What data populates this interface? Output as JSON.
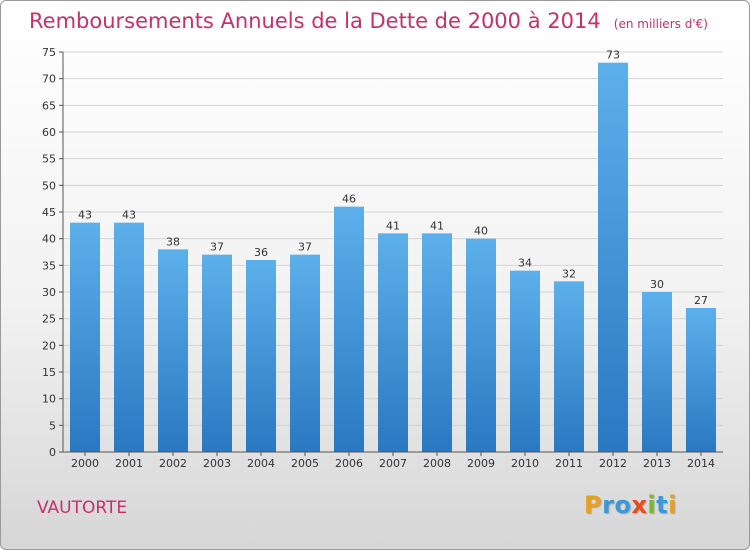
{
  "chart_data": {
    "type": "bar",
    "title": "Remboursements Annuels de la Dette de 2000 à 2014",
    "subtitle": "(en milliers d'€)",
    "categories": [
      "2000",
      "2001",
      "2002",
      "2003",
      "2004",
      "2005",
      "2006",
      "2007",
      "2008",
      "2009",
      "2010",
      "2011",
      "2012",
      "2013",
      "2014"
    ],
    "values": [
      43,
      43,
      38,
      37,
      36,
      37,
      46,
      41,
      41,
      40,
      34,
      32,
      73,
      30,
      27
    ],
    "ylim": [
      0,
      75
    ],
    "yticks": [
      0,
      5,
      10,
      15,
      20,
      25,
      30,
      35,
      40,
      45,
      50,
      55,
      60,
      65,
      70,
      75
    ],
    "grid": true,
    "xlabel": "",
    "ylabel": ""
  },
  "commune": "VAUTORTE",
  "brand": {
    "letters": [
      "P",
      "r",
      "o",
      "x",
      "i",
      "t",
      "i"
    ],
    "colors": [
      "#e8a020",
      "#3a9ad9",
      "#3a9ad9",
      "#e84c1c",
      "#7ab830",
      "#3a9ad9",
      "#e8a020"
    ]
  },
  "colors": {
    "bar_top": "#5cb0ea",
    "bar_bottom": "#2a78c2",
    "title": "#c8306a"
  }
}
